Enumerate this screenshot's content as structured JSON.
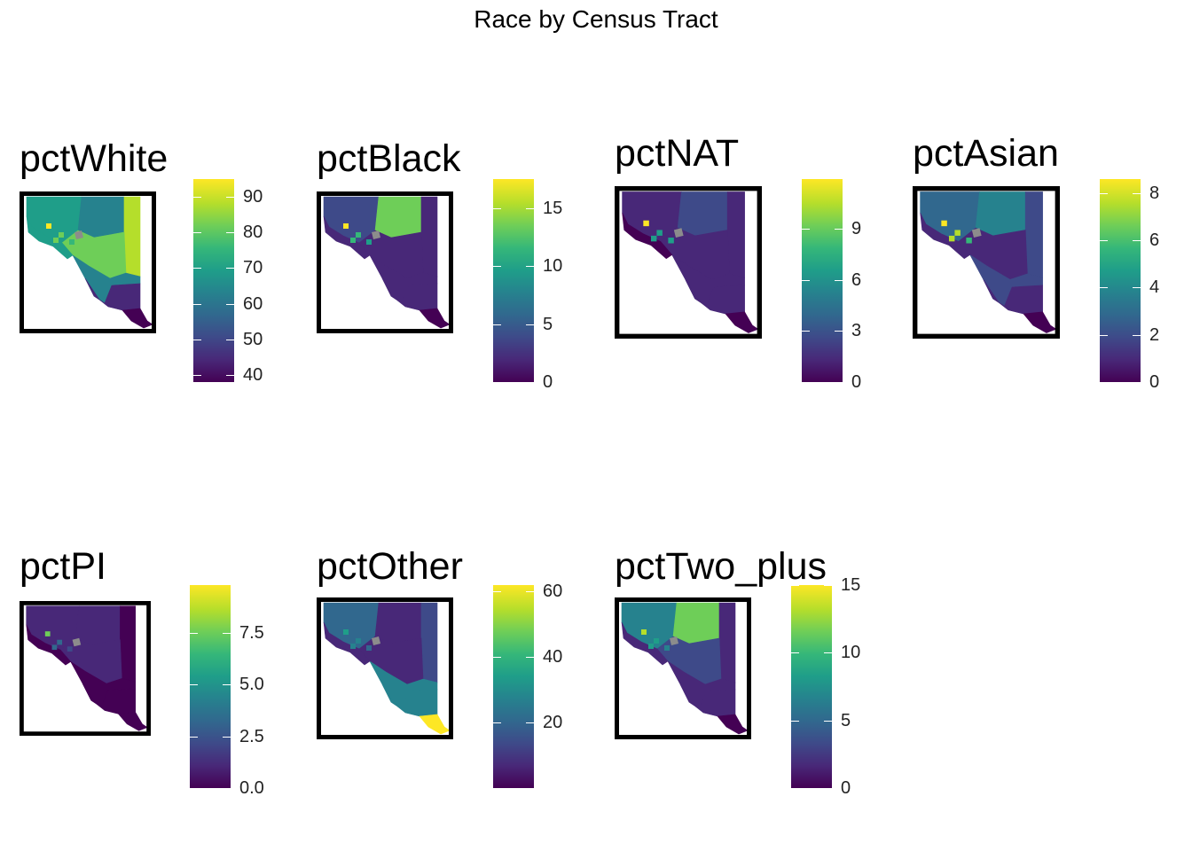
{
  "title": "Race by Census Tract",
  "panels": [
    {
      "name": "pctWhite",
      "legend": {
        "min": 38,
        "max": 95,
        "ticks": [
          40,
          50,
          60,
          70,
          80,
          90
        ],
        "labels": [
          "40",
          "50",
          "60",
          "70",
          "80",
          "90"
        ]
      }
    },
    {
      "name": "pctBlack",
      "legend": {
        "min": 0,
        "max": 17.5,
        "ticks": [
          0,
          5,
          10,
          15
        ],
        "labels": [
          "0",
          "5",
          "10",
          "15"
        ]
      }
    },
    {
      "name": "pctNAT",
      "legend": {
        "min": 0,
        "max": 11.9,
        "ticks": [
          0,
          3,
          6,
          9
        ],
        "labels": [
          "0",
          "3",
          "6",
          "9"
        ]
      }
    },
    {
      "name": "pctAsian",
      "legend": {
        "min": 0,
        "max": 8.6,
        "ticks": [
          0,
          2,
          4,
          6,
          8
        ],
        "labels": [
          "0",
          "2",
          "4",
          "6",
          "8"
        ]
      }
    },
    {
      "name": "pctPI",
      "legend": {
        "min": 0,
        "max": 9.8,
        "ticks": [
          0,
          2.5,
          5,
          7.5
        ],
        "labels": [
          "0.0",
          "2.5",
          "5.0",
          "7.5"
        ]
      }
    },
    {
      "name": "pctOther",
      "legend": {
        "min": 0,
        "max": 62,
        "ticks": [
          20,
          40,
          60
        ],
        "labels": [
          "20",
          "40",
          "60"
        ]
      }
    },
    {
      "name": "pctTwo_plus",
      "legend": {
        "min": 0,
        "max": 15,
        "ticks": [
          0,
          5,
          10,
          15
        ],
        "labels": [
          "0",
          "5",
          "10",
          "15"
        ]
      }
    }
  ]
}
